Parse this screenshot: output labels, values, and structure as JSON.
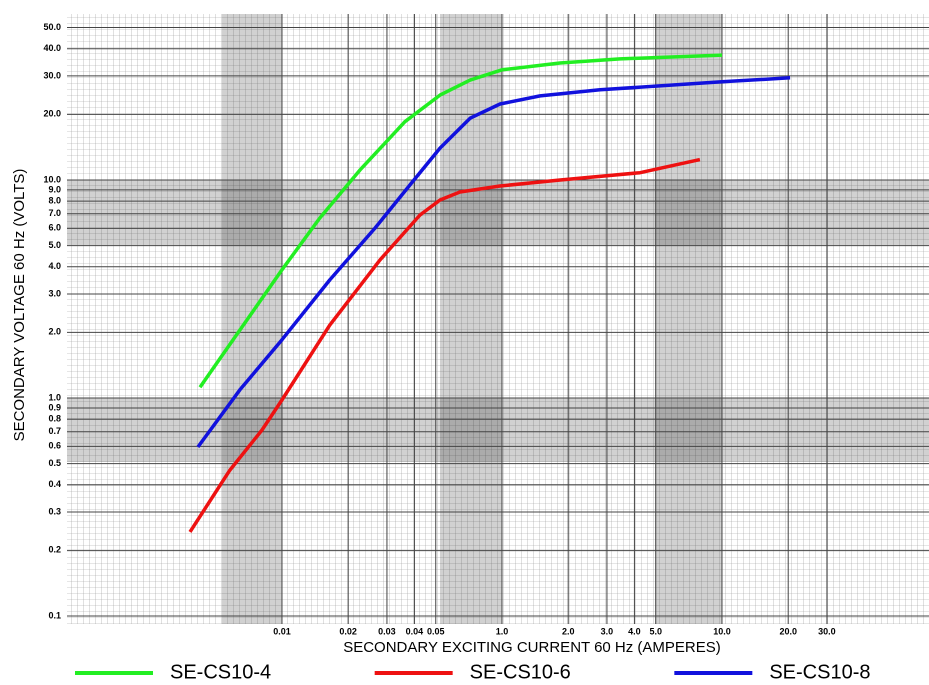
{
  "chart_data": {
    "type": "line",
    "x_label": "SECONDARY EXCITING CURRENT 60 Hz (AMPERES)",
    "y_label": "SECONDARY VOLTAGE 60 Hz (VOLTS)",
    "log_x": true,
    "log_y": true,
    "grid": true,
    "legend": "bottom",
    "xlim": [
      0.001054,
      8.73
    ],
    "ylim": [
      0.0919,
      57.7
    ],
    "xticks": [
      0.01,
      0.02,
      0.03,
      0.04,
      0.05,
      {
        "value": 0.1,
        "label": "1.0"
      },
      {
        "value": 0.2,
        "label": "2.0"
      },
      {
        "value": 0.3,
        "label": "3.0"
      },
      {
        "value": 0.4,
        "label": "4.0"
      },
      {
        "value": 0.5,
        "label": "5.0"
      },
      {
        "value": 1,
        "label": "10.0"
      },
      {
        "value": 2,
        "label": "20.0"
      },
      {
        "value": 3,
        "label": "30.0"
      }
    ],
    "yticks": [
      0.1,
      0.2,
      0.3,
      0.4,
      0.5,
      0.6,
      0.7,
      0.8,
      0.9,
      {
        "value": 1,
        "label": "1.0"
      },
      {
        "value": 2,
        "label": "2.0"
      },
      {
        "value": 3,
        "label": "3.0"
      },
      {
        "value": 4,
        "label": "4.0"
      },
      {
        "value": 5,
        "label": "5.0"
      },
      {
        "value": 6,
        "label": "6.0"
      },
      {
        "value": 7,
        "label": "7.0"
      },
      {
        "value": 8,
        "label": "8.0"
      },
      {
        "value": 9,
        "label": "9.0"
      },
      {
        "value": 10,
        "label": "10.0"
      },
      {
        "value": 20,
        "label": "20.0"
      },
      {
        "value": 30,
        "label": "30.0"
      },
      {
        "value": 40,
        "label": "40.0"
      },
      {
        "value": 50,
        "label": "50.0"
      }
    ],
    "series": [
      {
        "name": "SE-CS10-4",
        "color": "#22ee22",
        "x": [
          0.00424,
          0.00644,
          0.01,
          0.01486,
          0.0226,
          0.0362,
          0.0523,
          0.0716,
          0.1,
          0.1836,
          0.344,
          1.0
        ],
        "values": [
          1.12,
          2.05,
          3.87,
          6.69,
          11.1,
          18.5,
          24.5,
          28.7,
          32.0,
          34.4,
          35.9,
          37.4
        ]
      },
      {
        "name": "SE-CS10-6",
        "color": "#ee1111",
        "x": [
          0.00382,
          0.0058,
          0.00811,
          0.01,
          0.0165,
          0.0279,
          0.0424,
          0.0523,
          0.0644,
          0.0978,
          0.184,
          0.424,
          0.794
        ],
        "values": [
          0.243,
          0.467,
          0.713,
          0.98,
          2.16,
          4.3,
          6.91,
          8.09,
          8.81,
          9.38,
          10.0,
          10.8,
          12.4
        ]
      },
      {
        "name": "SE-CS10-8",
        "color": "#1111dd",
        "x": [
          0.00415,
          0.00644,
          0.01,
          0.0165,
          0.0265,
          0.0382,
          0.0523,
          0.0716,
          0.098,
          0.149,
          0.279,
          1.0,
          2.04
        ],
        "values": [
          0.596,
          1.09,
          1.85,
          3.48,
          6.02,
          9.49,
          14.0,
          19.2,
          22.3,
          24.3,
          25.9,
          28.2,
          29.4
        ]
      }
    ]
  }
}
